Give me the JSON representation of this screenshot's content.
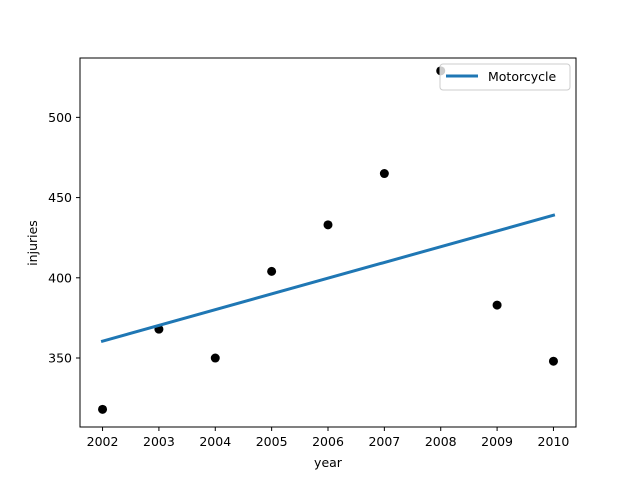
{
  "chart_data": {
    "type": "scatter",
    "title": "",
    "xlabel": "year",
    "ylabel": "injuries",
    "x": [
      2002,
      2003,
      2004,
      2005,
      2006,
      2007,
      2008,
      2009,
      2010
    ],
    "points": [
      318,
      368,
      350,
      404,
      433,
      465,
      529,
      383,
      348
    ],
    "trend_line": {
      "name": "Motorcycle",
      "x": [
        2002,
        2010
      ],
      "y": [
        360.5,
        439
      ],
      "color": "#1f77b4"
    },
    "point_color": "#000000",
    "xlim": [
      2001.6,
      2010.4
    ],
    "ylim": [
      307,
      537
    ],
    "x_ticks": [
      2002,
      2003,
      2004,
      2005,
      2006,
      2007,
      2008,
      2009,
      2010
    ],
    "y_ticks": [
      350,
      400,
      450,
      500
    ],
    "grid": false,
    "legend_position": "top-right"
  }
}
